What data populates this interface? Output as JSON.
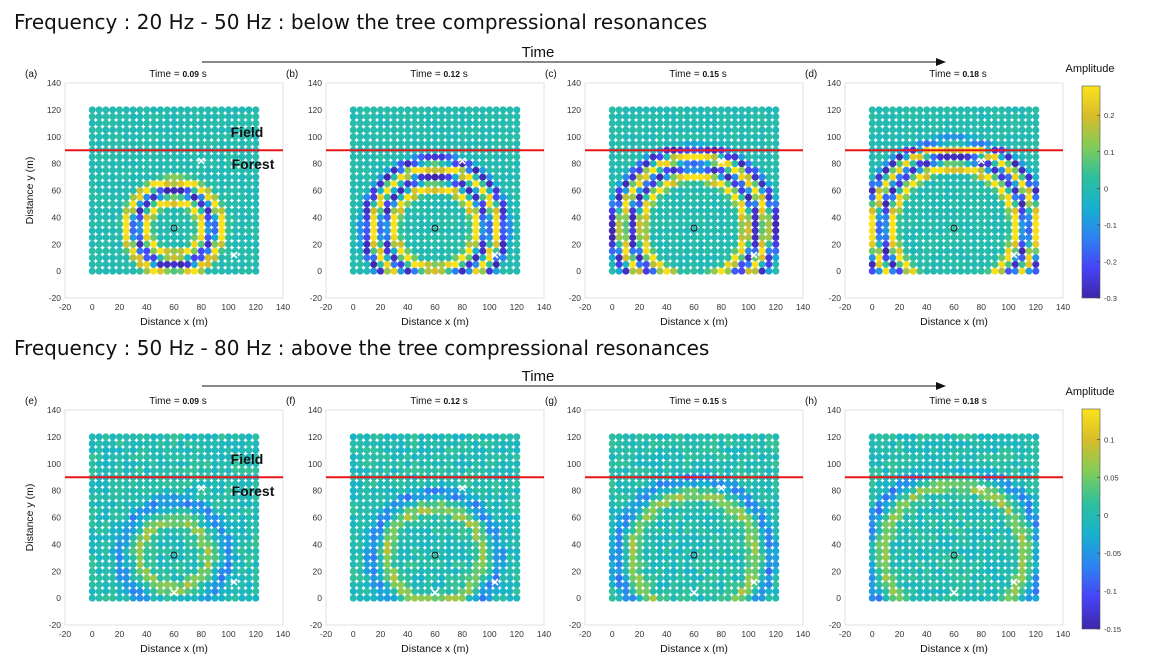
{
  "rows": [
    {
      "heading": "Frequency : 20 Hz -  50 Hz : below the tree compressional resonances",
      "time_label": "Time",
      "colorbar": {
        "title": "Amplitude",
        "ticks": [
          "0.2",
          "0.1",
          "0",
          "-0.1",
          "-0.2",
          "-0.3"
        ],
        "tick_values": [
          0.2,
          0.1,
          0,
          -0.1,
          -0.2,
          -0.3
        ],
        "range": [
          -0.3,
          0.28
        ]
      }
    },
    {
      "heading": "Frequency : 50 Hz -  80 Hz : above the tree compressional resonances",
      "time_label": "Time",
      "colorbar": {
        "title": "Amplitude",
        "ticks": [
          "0.1",
          "0.05",
          "0",
          "-0.05",
          "-0.1",
          "-0.15"
        ],
        "tick_values": [
          0.1,
          0.05,
          0,
          -0.05,
          -0.1,
          -0.15
        ],
        "range": [
          -0.15,
          0.14
        ]
      }
    }
  ],
  "region_labels": {
    "field": "Field",
    "forest": "Forest"
  },
  "chart_data": [
    {
      "panel": "(a)",
      "type": "scatter",
      "title_prefix": "Time = ",
      "time": "0.09",
      "unit": " s",
      "xlabel": "Distance x (m)",
      "ylabel": "Distance y (m)",
      "xlim": [
        -20,
        140
      ],
      "ylim": [
        -20,
        140
      ],
      "xticks": [
        -20,
        0,
        20,
        40,
        60,
        80,
        100,
        120,
        140
      ],
      "yticks": [
        -20,
        0,
        20,
        40,
        60,
        80,
        100,
        120,
        140
      ],
      "grid_x": [
        0,
        120
      ],
      "grid_y": [
        0,
        120
      ],
      "spacing_m": 5,
      "boundary_y": 90,
      "source": [
        60,
        32
      ],
      "receivers": [
        [
          80,
          82
        ],
        [
          104,
          12
        ]
      ],
      "wave_radii": [
        20,
        28,
        35
      ],
      "frequency_band": "low"
    },
    {
      "panel": "(b)",
      "type": "scatter",
      "title_prefix": "Time = ",
      "time": "0.12",
      "unit": " s",
      "xlabel": "Distance x (m)",
      "ylabel": "",
      "xlim": [
        -20,
        140
      ],
      "ylim": [
        -20,
        140
      ],
      "xticks": [
        -20,
        0,
        20,
        40,
        60,
        80,
        100,
        120,
        140
      ],
      "yticks": [
        -20,
        0,
        20,
        40,
        60,
        80,
        100,
        120,
        140
      ],
      "grid_x": [
        0,
        120
      ],
      "grid_y": [
        0,
        120
      ],
      "spacing_m": 5,
      "boundary_y": 90,
      "source": [
        60,
        32
      ],
      "receivers": [
        [
          80,
          82
        ],
        [
          104,
          12
        ]
      ],
      "wave_radii": [
        30,
        38,
        45,
        52
      ],
      "frequency_band": "low"
    },
    {
      "panel": "(c)",
      "type": "scatter",
      "title_prefix": "Time = ",
      "time": "0.15",
      "unit": " s",
      "xlabel": "Distance x (m)",
      "ylabel": "",
      "xlim": [
        -20,
        140
      ],
      "ylim": [
        -20,
        140
      ],
      "xticks": [
        -20,
        0,
        20,
        40,
        60,
        80,
        100,
        120,
        140
      ],
      "yticks": [
        -20,
        0,
        20,
        40,
        60,
        80,
        100,
        120,
        140
      ],
      "grid_x": [
        0,
        120
      ],
      "grid_y": [
        0,
        120
      ],
      "spacing_m": 5,
      "boundary_y": 90,
      "source": [
        60,
        32
      ],
      "receivers": [
        [
          80,
          82
        ],
        [
          104,
          12
        ]
      ],
      "wave_radii": [
        38,
        46,
        53,
        60
      ],
      "frequency_band": "low"
    },
    {
      "panel": "(d)",
      "type": "scatter",
      "title_prefix": "Time = ",
      "time": "0.18",
      "unit": " s",
      "xlabel": "Distance x (m)",
      "ylabel": "",
      "xlim": [
        -20,
        140
      ],
      "ylim": [
        -20,
        140
      ],
      "xticks": [
        -20,
        0,
        20,
        40,
        60,
        80,
        100,
        120,
        140
      ],
      "yticks": [
        -20,
        0,
        20,
        40,
        60,
        80,
        100,
        120,
        140
      ],
      "grid_x": [
        0,
        120
      ],
      "grid_y": [
        0,
        120
      ],
      "spacing_m": 5,
      "boundary_y": 90,
      "source": [
        60,
        32
      ],
      "receivers": [
        [
          80,
          82
        ],
        [
          104,
          12
        ]
      ],
      "wave_radii": [
        45,
        53,
        60,
        66
      ],
      "frequency_band": "low"
    },
    {
      "panel": "(e)",
      "type": "scatter",
      "title_prefix": "Time = ",
      "time": "0.09",
      "unit": " s",
      "xlabel": "Distance x (m)",
      "ylabel": "Distance y (m)",
      "xlim": [
        -20,
        140
      ],
      "ylim": [
        -20,
        140
      ],
      "xticks": [
        -20,
        0,
        20,
        40,
        60,
        80,
        100,
        120,
        140
      ],
      "yticks": [
        -20,
        0,
        20,
        40,
        60,
        80,
        100,
        120,
        140
      ],
      "grid_x": [
        0,
        120
      ],
      "grid_y": [
        0,
        120
      ],
      "spacing_m": 5,
      "boundary_y": 90,
      "source": [
        60,
        32
      ],
      "receivers": [
        [
          80,
          82
        ],
        [
          104,
          12
        ],
        [
          60,
          4
        ]
      ],
      "wave_radii": [
        25,
        40
      ],
      "frequency_band": "high"
    },
    {
      "panel": "(f)",
      "type": "scatter",
      "title_prefix": "Time = ",
      "time": "0.12",
      "unit": " s",
      "xlabel": "Distance x (m)",
      "ylabel": "",
      "xlim": [
        -20,
        140
      ],
      "ylim": [
        -20,
        140
      ],
      "xticks": [
        -20,
        0,
        20,
        40,
        60,
        80,
        100,
        120,
        140
      ],
      "yticks": [
        -20,
        0,
        20,
        40,
        60,
        80,
        100,
        120,
        140
      ],
      "grid_x": [
        0,
        120
      ],
      "grid_y": [
        0,
        120
      ],
      "spacing_m": 5,
      "boundary_y": 90,
      "source": [
        60,
        32
      ],
      "receivers": [
        [
          80,
          82
        ],
        [
          104,
          12
        ],
        [
          60,
          4
        ]
      ],
      "wave_radii": [
        35,
        47
      ],
      "frequency_band": "high"
    },
    {
      "panel": "(g)",
      "type": "scatter",
      "title_prefix": "Time = ",
      "time": "0.15",
      "unit": " s",
      "xlabel": "Distance x (m)",
      "ylabel": "",
      "xlim": [
        -20,
        140
      ],
      "ylim": [
        -20,
        140
      ],
      "xticks": [
        -20,
        0,
        20,
        40,
        60,
        80,
        100,
        120,
        140
      ],
      "yticks": [
        -20,
        0,
        20,
        40,
        60,
        80,
        100,
        120,
        140
      ],
      "grid_x": [
        0,
        120
      ],
      "grid_y": [
        0,
        120
      ],
      "spacing_m": 5,
      "boundary_y": 90,
      "source": [
        60,
        32
      ],
      "receivers": [
        [
          80,
          82
        ],
        [
          104,
          12
        ],
        [
          60,
          4
        ]
      ],
      "wave_radii": [
        45,
        57
      ],
      "frequency_band": "high"
    },
    {
      "panel": "(h)",
      "type": "scatter",
      "title_prefix": "Time = ",
      "time": "0.18",
      "unit": " s",
      "xlabel": "Distance x (m)",
      "ylabel": "",
      "xlim": [
        -20,
        140
      ],
      "ylim": [
        -20,
        140
      ],
      "xticks": [
        -20,
        0,
        20,
        40,
        60,
        80,
        100,
        120,
        140
      ],
      "yticks": [
        -20,
        0,
        20,
        40,
        60,
        80,
        100,
        120,
        140
      ],
      "grid_x": [
        0,
        120
      ],
      "grid_y": [
        0,
        120
      ],
      "spacing_m": 5,
      "boundary_y": 90,
      "source": [
        60,
        32
      ],
      "receivers": [
        [
          80,
          82
        ],
        [
          104,
          12
        ],
        [
          60,
          4
        ]
      ],
      "wave_radii": [
        52,
        65
      ],
      "frequency_band": "high"
    }
  ],
  "colors": {
    "boundary_line": "#e8171b",
    "colormap": [
      "#3e26a8",
      "#4743f8",
      "#2d83f2",
      "#16b1cf",
      "#2ec09d",
      "#81cc59",
      "#d6bc2a",
      "#fbe31b"
    ],
    "background_amplitude": "#2dbfa4"
  }
}
